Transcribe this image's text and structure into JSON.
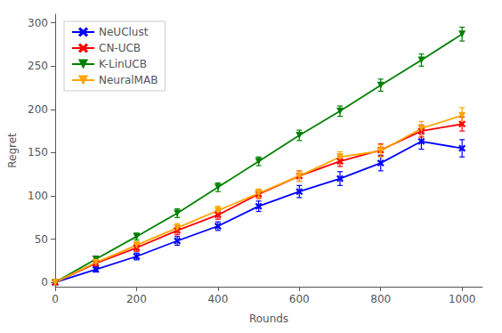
{
  "chart_data": {
    "type": "line",
    "xlabel": "Rounds",
    "ylabel": "Regret",
    "x": [
      0,
      100,
      200,
      300,
      400,
      500,
      600,
      700,
      800,
      900,
      1000
    ],
    "series": [
      {
        "name": "NeUClust",
        "color": "#0000ff",
        "marker": "x",
        "values": [
          0,
          15,
          30,
          48,
          65,
          88,
          105,
          120,
          138,
          163,
          155
        ],
        "errors": [
          0,
          3,
          4,
          5,
          5,
          6,
          7,
          8,
          9,
          9,
          10
        ]
      },
      {
        "name": "CN-UCB",
        "color": "#ff0000",
        "marker": "x",
        "values": [
          0,
          22,
          40,
          60,
          78,
          102,
          123,
          140,
          153,
          175,
          183
        ],
        "errors": [
          0,
          3,
          4,
          5,
          5,
          5,
          6,
          6,
          7,
          7,
          8
        ]
      },
      {
        "name": "K-LinUCB",
        "color": "#008000",
        "marker": "triangle-down",
        "values": [
          0,
          27,
          53,
          80,
          110,
          140,
          170,
          198,
          228,
          257,
          287
        ],
        "errors": [
          0,
          3,
          4,
          5,
          5,
          5,
          6,
          6,
          7,
          7,
          8
        ]
      },
      {
        "name": "NeuralMAB",
        "color": "#ffa500",
        "marker": "triangle-down",
        "values": [
          0,
          23,
          43,
          63,
          83,
          103,
          123,
          145,
          152,
          178,
          193
        ],
        "errors": [
          0,
          3,
          4,
          5,
          5,
          5,
          6,
          6,
          7,
          8,
          9
        ]
      }
    ],
    "xlim": [
      0,
      1050
    ],
    "ylim": [
      -5,
      310
    ],
    "xticks": [
      0,
      200,
      400,
      600,
      800,
      1000
    ],
    "yticks": [
      0,
      50,
      100,
      150,
      200,
      250,
      300
    ],
    "grid": false,
    "legend": "upper left"
  }
}
